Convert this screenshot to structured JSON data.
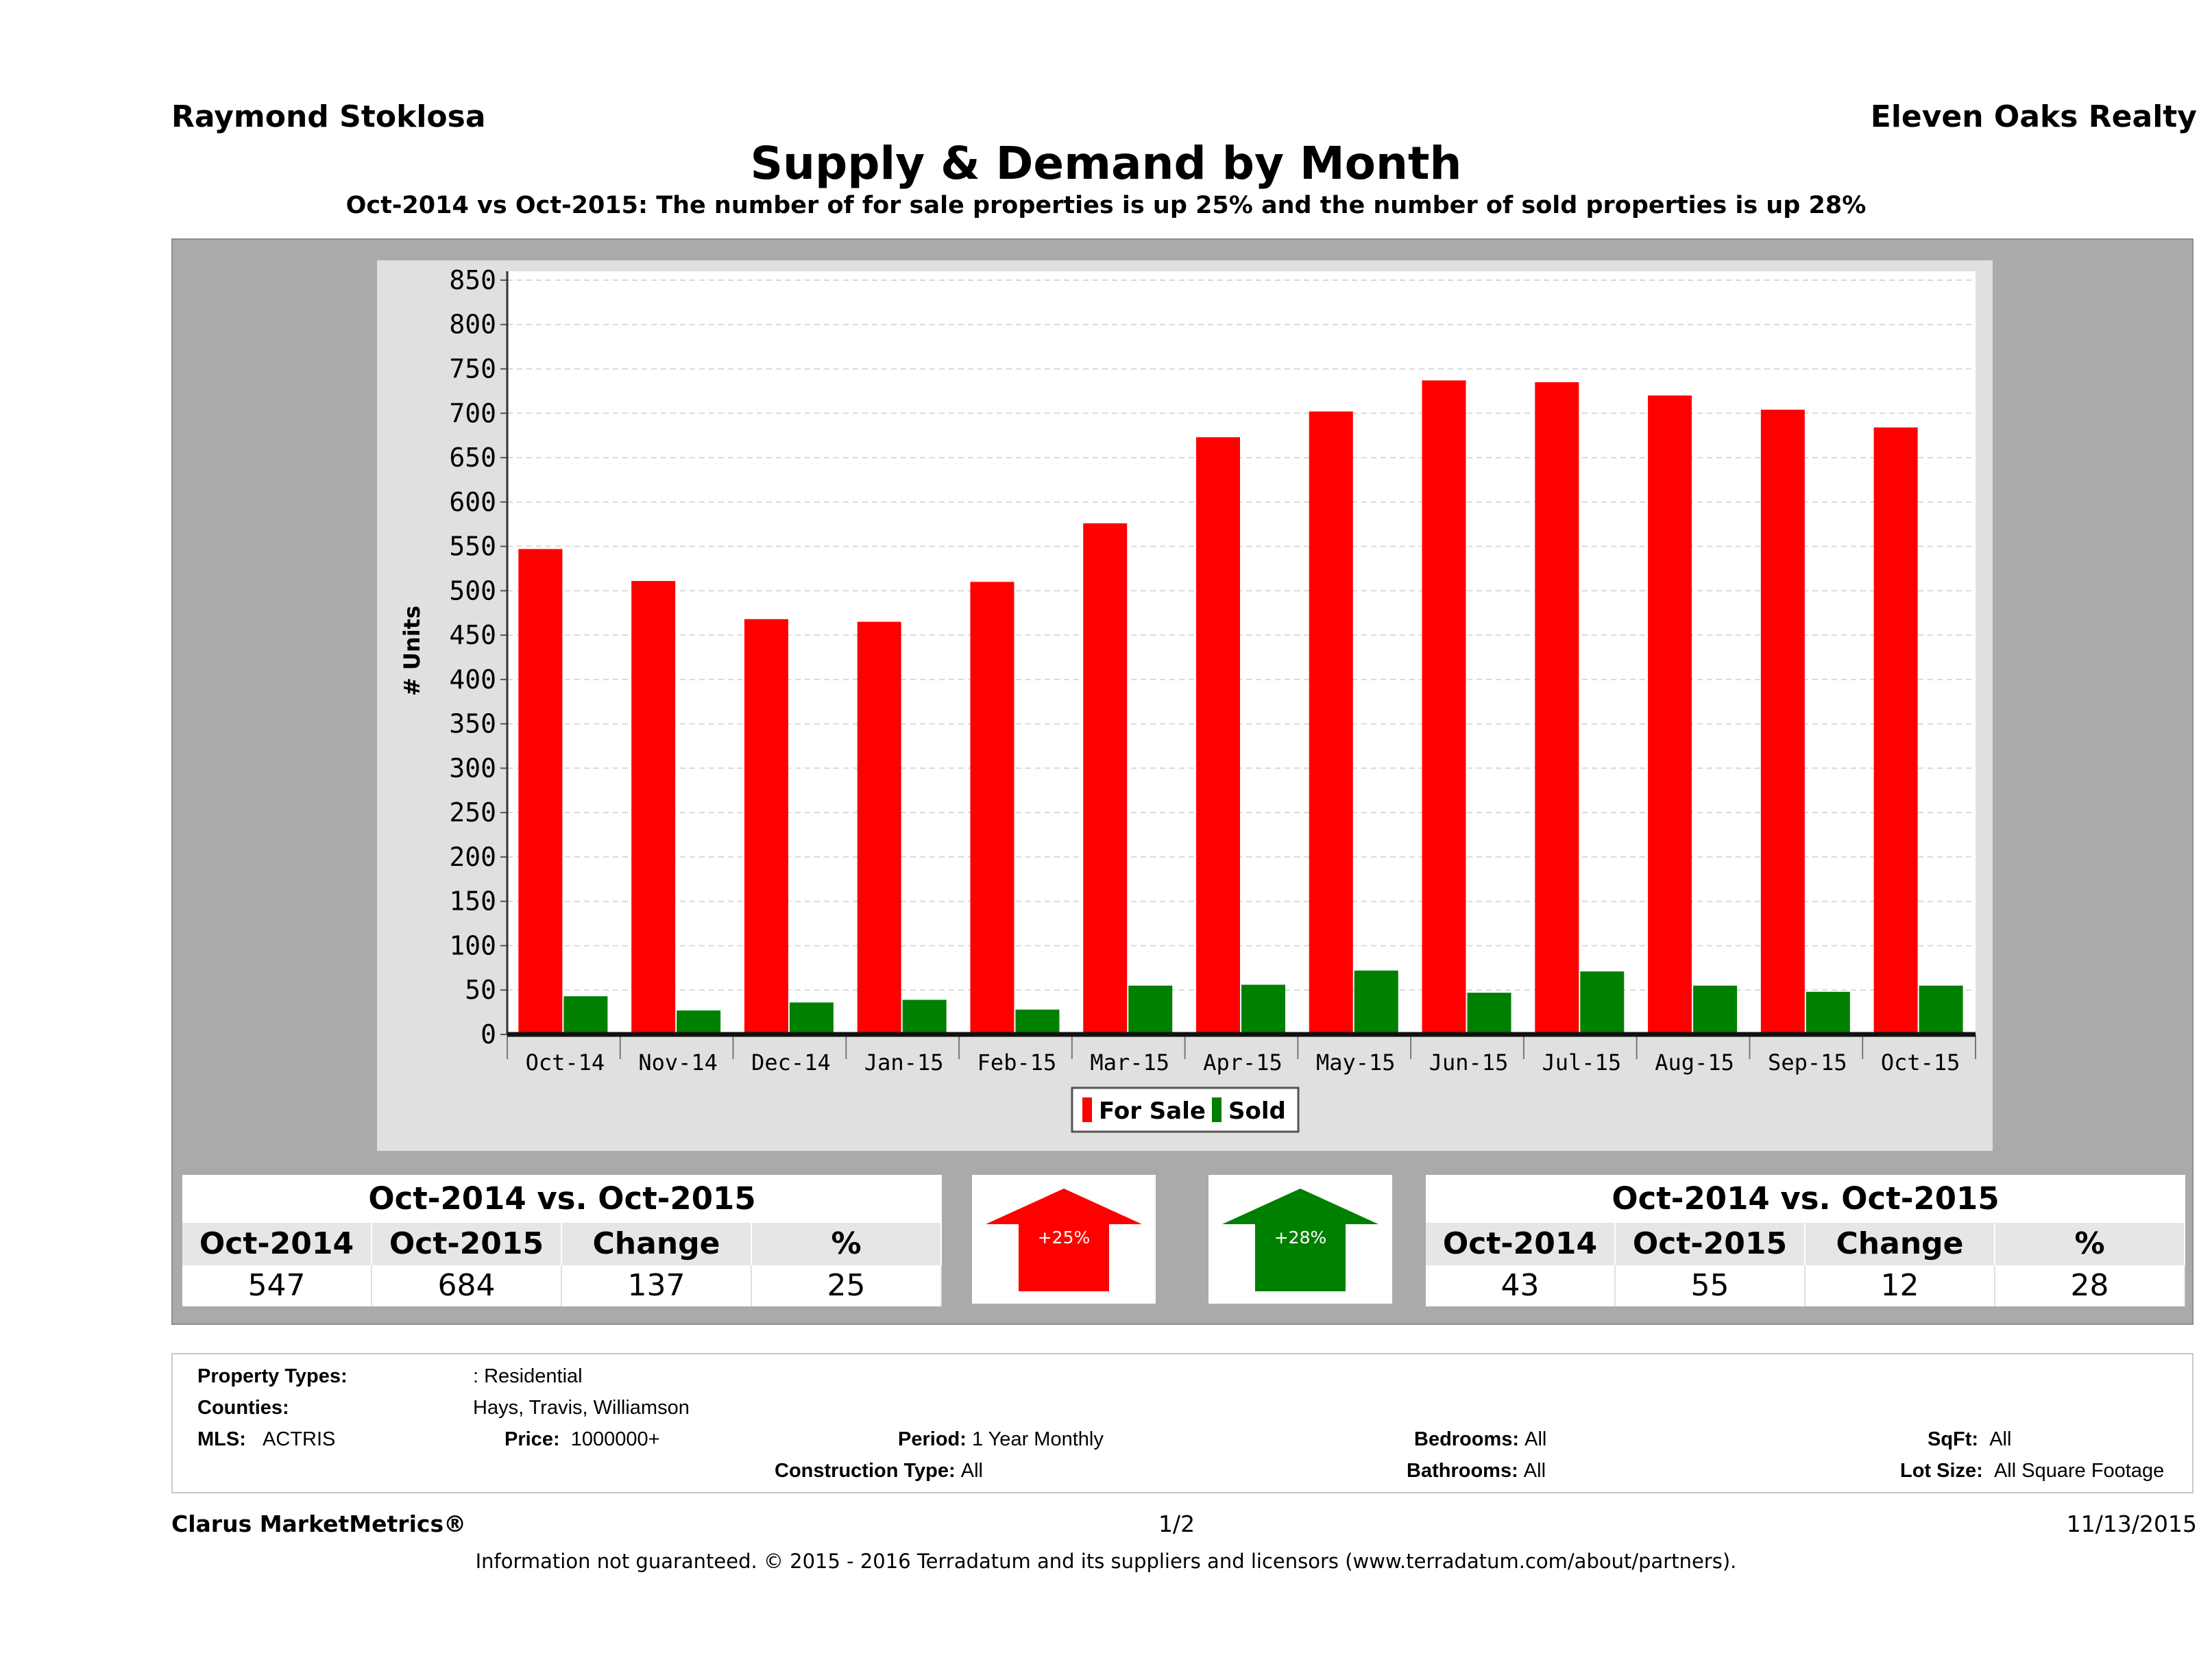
{
  "header": {
    "agent": "Raymond Stoklosa",
    "company": "Eleven Oaks Realty",
    "title": "Supply & Demand by Month",
    "subtitle": "Oct-2014 vs Oct-2015: The number of for sale properties is up 25% and the number of sold properties is up 28%"
  },
  "chart_data": {
    "type": "bar",
    "categories": [
      "Oct-14",
      "Nov-14",
      "Dec-14",
      "Jan-15",
      "Feb-15",
      "Mar-15",
      "Apr-15",
      "May-15",
      "Jun-15",
      "Jul-15",
      "Aug-15",
      "Sep-15",
      "Oct-15"
    ],
    "series": [
      {
        "name": "For Sale",
        "color": "#ff0000",
        "values": [
          547,
          511,
          468,
          465,
          510,
          576,
          673,
          702,
          737,
          735,
          720,
          704,
          684
        ]
      },
      {
        "name": "Sold",
        "color": "#008000",
        "values": [
          43,
          27,
          36,
          39,
          28,
          55,
          56,
          72,
          47,
          71,
          55,
          48,
          55
        ]
      }
    ],
    "ylabel": "# Units",
    "ylim": [
      0,
      860
    ],
    "yticks": [
      0,
      50,
      100,
      150,
      200,
      250,
      300,
      350,
      400,
      450,
      500,
      550,
      600,
      650,
      700,
      750,
      800,
      850
    ],
    "grid": true,
    "legend": "bottom-center"
  },
  "for_sale_stats": {
    "title": "Oct-2014 vs. Oct-2015",
    "headers": [
      "Oct-2014",
      "Oct-2015",
      "Change",
      "%"
    ],
    "values": [
      "547",
      "684",
      "137",
      "25"
    ],
    "arrow_label": "+25%",
    "arrow_color": "#ff0000"
  },
  "sold_stats": {
    "title": "Oct-2014 vs. Oct-2015",
    "headers": [
      "Oct-2014",
      "Oct-2015",
      "Change",
      "%"
    ],
    "values": [
      "43",
      "55",
      "12",
      "28"
    ],
    "arrow_label": "+28%",
    "arrow_color": "#008000"
  },
  "info": {
    "property_types_label": "Property Types:",
    "property_types_value": ": Residential",
    "counties_label": "Counties:",
    "counties_value": "Hays, Travis, Williamson",
    "mls_label": "MLS:",
    "mls_value": "ACTRIS",
    "price_label": "Price:",
    "price_value": "1000000+",
    "period_label": "Period:",
    "period_value": "1 Year Monthly",
    "construction_label": "Construction Type:",
    "construction_value": "All",
    "bedrooms_label": "Bedrooms:",
    "bedrooms_value": "All",
    "bathrooms_label": "Bathrooms:",
    "bathrooms_value": "All",
    "sqft_label": "SqFt:",
    "sqft_value": "All",
    "lot_label": "Lot Size:",
    "lot_value": "All Square Footage"
  },
  "footer": {
    "brand": "Clarus MarketMetrics®",
    "page": "1/2",
    "date": "11/13/2015",
    "disclaimer": "Information not guaranteed. © 2015 - 2016 Terradatum and its suppliers and licensors (www.terradatum.com/about/partners)."
  }
}
